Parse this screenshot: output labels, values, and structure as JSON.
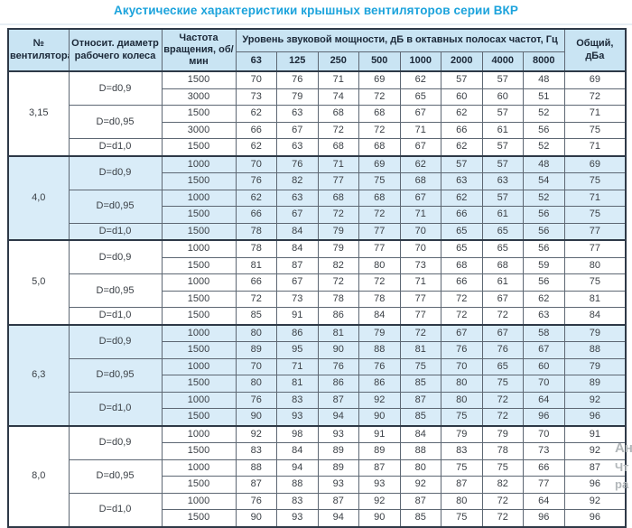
{
  "title": "Акустические характеристики крышных вентиляторов серии ВКР",
  "watermark": {
    "line1": "Ан",
    "line2": "Чт",
    "line3": "ра"
  },
  "colors": {
    "title_accent": "#1ca3dc",
    "header_bg": "#c9e4f3",
    "shaded_row_bg": "#d9ecf8",
    "border_outer": "#2e3947",
    "border_inner": "#5d6773",
    "header_text": "#1b2838",
    "cell_text": "#3b4046"
  },
  "table": {
    "headers": {
      "fan_no": "№ вентилятора",
      "rel_diameter": "Относит. диаметр рабочего колеса",
      "rotation_freq": "Частота вращения, об/мин",
      "sound_power": "Уровень звуковой мощности, дБ в октавных полосах частот, Гц",
      "frequencies": [
        "63",
        "125",
        "250",
        "500",
        "1000",
        "2000",
        "4000",
        "8000"
      ],
      "total": "Общий, дБа"
    },
    "groups": [
      {
        "fan": "3,15",
        "shaded": false,
        "subgroups": [
          {
            "diameter": "D=d0,9",
            "rows": [
              {
                "rpm": "1500",
                "levels": [
                  70,
                  76,
                  71,
                  69,
                  62,
                  57,
                  57,
                  48
                ],
                "total": 69
              },
              {
                "rpm": "3000",
                "levels": [
                  73,
                  79,
                  74,
                  72,
                  65,
                  60,
                  60,
                  51
                ],
                "total": 72
              }
            ]
          },
          {
            "diameter": "D=d0,95",
            "rows": [
              {
                "rpm": "1500",
                "levels": [
                  62,
                  63,
                  68,
                  68,
                  67,
                  62,
                  57,
                  52
                ],
                "total": 71
              },
              {
                "rpm": "3000",
                "levels": [
                  66,
                  67,
                  72,
                  72,
                  71,
                  66,
                  61,
                  56
                ],
                "total": 75
              }
            ]
          },
          {
            "diameter": "D=d1,0",
            "rows": [
              {
                "rpm": "1500",
                "levels": [
                  62,
                  63,
                  68,
                  68,
                  67,
                  62,
                  57,
                  52
                ],
                "total": 71
              }
            ]
          }
        ]
      },
      {
        "fan": "4,0",
        "shaded": true,
        "subgroups": [
          {
            "diameter": "D=d0,9",
            "rows": [
              {
                "rpm": "1000",
                "levels": [
                  70,
                  76,
                  71,
                  69,
                  62,
                  57,
                  57,
                  48
                ],
                "total": 69
              },
              {
                "rpm": "1500",
                "levels": [
                  76,
                  82,
                  77,
                  75,
                  68,
                  63,
                  63,
                  54
                ],
                "total": 75
              }
            ]
          },
          {
            "diameter": "D=d0,95",
            "rows": [
              {
                "rpm": "1000",
                "levels": [
                  62,
                  63,
                  68,
                  68,
                  67,
                  62,
                  57,
                  52
                ],
                "total": 71
              },
              {
                "rpm": "1500",
                "levels": [
                  66,
                  67,
                  72,
                  72,
                  71,
                  66,
                  61,
                  56
                ],
                "total": 75
              }
            ]
          },
          {
            "diameter": "D=d1,0",
            "rows": [
              {
                "rpm": "1500",
                "levels": [
                  78,
                  84,
                  79,
                  77,
                  70,
                  65,
                  65,
                  56
                ],
                "total": 77
              }
            ]
          }
        ]
      },
      {
        "fan": "5,0",
        "shaded": false,
        "subgroups": [
          {
            "diameter": "D=d0,9",
            "rows": [
              {
                "rpm": "1000",
                "levels": [
                  78,
                  84,
                  79,
                  77,
                  70,
                  65,
                  65,
                  56
                ],
                "total": 77
              },
              {
                "rpm": "1500",
                "levels": [
                  81,
                  87,
                  82,
                  80,
                  73,
                  68,
                  68,
                  59
                ],
                "total": 80
              }
            ]
          },
          {
            "diameter": "D=d0,95",
            "rows": [
              {
                "rpm": "1000",
                "levels": [
                  66,
                  67,
                  72,
                  72,
                  71,
                  66,
                  61,
                  56
                ],
                "total": 75
              },
              {
                "rpm": "1500",
                "levels": [
                  72,
                  73,
                  78,
                  78,
                  77,
                  72,
                  67,
                  62
                ],
                "total": 81
              }
            ]
          },
          {
            "diameter": "D=d1,0",
            "rows": [
              {
                "rpm": "1500",
                "levels": [
                  85,
                  91,
                  86,
                  84,
                  77,
                  72,
                  72,
                  63
                ],
                "total": 84
              }
            ]
          }
        ]
      },
      {
        "fan": "6,3",
        "shaded": true,
        "subgroups": [
          {
            "diameter": "D=d0,9",
            "rows": [
              {
                "rpm": "1000",
                "levels": [
                  80,
                  86,
                  81,
                  79,
                  72,
                  67,
                  67,
                  58
                ],
                "total": 79
              },
              {
                "rpm": "1500",
                "levels": [
                  89,
                  95,
                  90,
                  88,
                  81,
                  76,
                  76,
                  67
                ],
                "total": 88
              }
            ]
          },
          {
            "diameter": "D=d0,95",
            "rows": [
              {
                "rpm": "1000",
                "levels": [
                  70,
                  71,
                  76,
                  76,
                  75,
                  70,
                  65,
                  60
                ],
                "total": 79
              },
              {
                "rpm": "1500",
                "levels": [
                  80,
                  81,
                  86,
                  86,
                  85,
                  80,
                  75,
                  70
                ],
                "total": 89
              }
            ]
          },
          {
            "diameter": "D=d1,0",
            "rows": [
              {
                "rpm": "1000",
                "levels": [
                  76,
                  83,
                  87,
                  92,
                  87,
                  80,
                  72,
                  64
                ],
                "total": 92
              },
              {
                "rpm": "1500",
                "levels": [
                  90,
                  93,
                  94,
                  90,
                  85,
                  75,
                  72,
                  96
                ],
                "total": 96
              }
            ]
          }
        ]
      },
      {
        "fan": "8,0",
        "shaded": false,
        "subgroups": [
          {
            "diameter": "D=d0,9",
            "rows": [
              {
                "rpm": "1000",
                "levels": [
                  92,
                  98,
                  93,
                  91,
                  84,
                  79,
                  79,
                  70
                ],
                "total": 91
              },
              {
                "rpm": "1500",
                "levels": [
                  83,
                  84,
                  89,
                  89,
                  88,
                  83,
                  78,
                  73
                ],
                "total": 92
              }
            ]
          },
          {
            "diameter": "D=d0,95",
            "rows": [
              {
                "rpm": "1000",
                "levels": [
                  88,
                  94,
                  89,
                  87,
                  80,
                  75,
                  75,
                  66
                ],
                "total": 87
              },
              {
                "rpm": "1500",
                "levels": [
                  87,
                  88,
                  93,
                  93,
                  92,
                  87,
                  82,
                  77
                ],
                "total": 96
              }
            ]
          },
          {
            "diameter": "D=d1,0",
            "rows": [
              {
                "rpm": "1000",
                "levels": [
                  76,
                  83,
                  87,
                  92,
                  87,
                  80,
                  72,
                  64
                ],
                "total": 92
              },
              {
                "rpm": "1500",
                "levels": [
                  90,
                  93,
                  94,
                  90,
                  85,
                  75,
                  72,
                  96
                ],
                "total": 96
              }
            ]
          }
        ]
      }
    ]
  }
}
